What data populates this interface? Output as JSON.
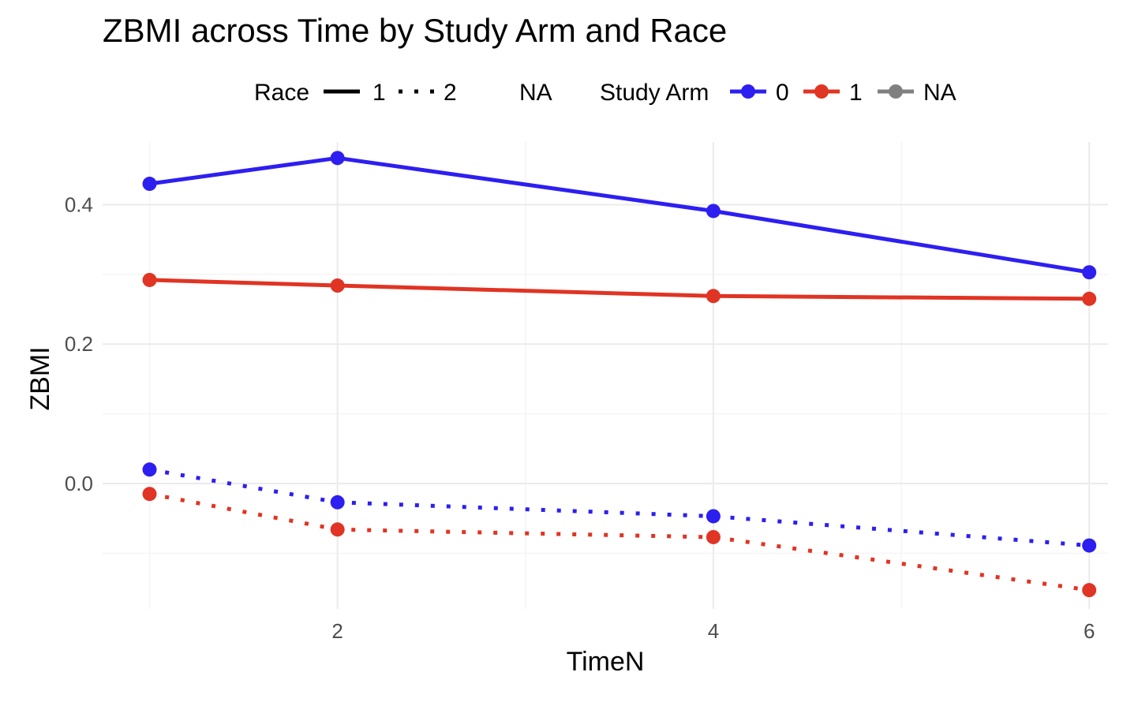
{
  "chart_data": {
    "type": "line",
    "title": "ZBMI across Time by Study Arm and Race",
    "xlabel": "TimeN",
    "ylabel": "ZBMI",
    "x": [
      1,
      2,
      4,
      6
    ],
    "xlim": [
      0.75,
      6.1
    ],
    "ylim": [
      -0.18,
      0.49
    ],
    "x_ticks": [
      2,
      4,
      6
    ],
    "x_tick_labels": [
      "2",
      "4",
      "6"
    ],
    "x_minor_ticks": [
      1,
      3,
      5
    ],
    "y_ticks": [
      0.0,
      0.2,
      0.4
    ],
    "y_tick_labels": [
      "0.0",
      "0.2",
      "0.4"
    ],
    "y_minor_ticks": [
      -0.1,
      0.1,
      0.3
    ],
    "grid": true,
    "legend_position": "top",
    "legend": {
      "race_title": "Race",
      "race_items": [
        {
          "label": "1",
          "linetype": "solid"
        },
        {
          "label": "2",
          "linetype": "dotted"
        },
        {
          "label": "NA",
          "linetype": "blank"
        }
      ],
      "arm_title": "Study Arm",
      "arm_items": [
        {
          "label": "0",
          "color": "#2d1ff0"
        },
        {
          "label": "1",
          "color": "#e03424"
        },
        {
          "label": "NA",
          "color": "#808080"
        }
      ]
    },
    "series": [
      {
        "arm": "0",
        "race": "1",
        "color": "#2d1ff0",
        "linetype": "solid",
        "values": [
          0.43,
          0.467,
          0.391,
          0.303
        ]
      },
      {
        "arm": "1",
        "race": "1",
        "color": "#e03424",
        "linetype": "solid",
        "values": [
          0.292,
          0.284,
          0.269,
          0.265
        ]
      },
      {
        "arm": "0",
        "race": "2",
        "color": "#2d1ff0",
        "linetype": "dotted",
        "values": [
          0.02,
          -0.027,
          -0.047,
          -0.089
        ]
      },
      {
        "arm": "1",
        "race": "2",
        "color": "#e03424",
        "linetype": "dotted",
        "values": [
          -0.015,
          -0.066,
          -0.077,
          -0.153
        ]
      }
    ]
  }
}
